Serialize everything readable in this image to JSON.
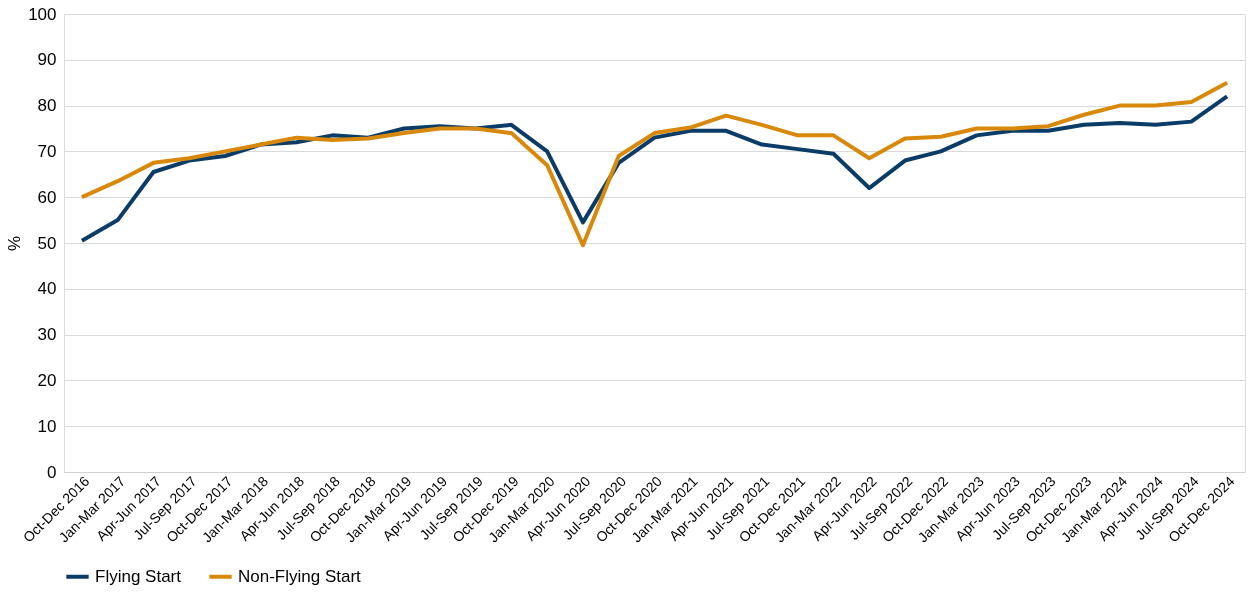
{
  "chart_data": {
    "type": "line",
    "ylabel": "%",
    "categories": [
      "Oct-Dec 2016",
      "Jan-Mar 2017",
      "Apr-Jun 2017",
      "Jul-Sep 2017",
      "Oct-Dec 2017",
      "Jan-Mar 2018",
      "Apr-Jun 2018",
      "Jul-Sep 2018",
      "Oct-Dec 2018",
      "Jan-Mar 2019",
      "Apr-Jun 2019",
      "Jul-Sep 2019",
      "Oct-Dec 2019",
      "Jan-Mar 2020",
      "Apr-Jun 2020",
      "Jul-Sep 2020",
      "Oct-Dec 2020",
      "Jan-Mar 2021",
      "Apr-Jun 2021",
      "Jul-Sep 2021",
      "Oct-Dec 2021",
      "Jan-Mar 2022",
      "Apr-Jun 2022",
      "Jul-Sep 2022",
      "Oct-Dec 2022",
      "Jan-Mar 2023",
      "Apr-Jun 2023",
      "Jul-Sep 2023",
      "Oct-Dec 2023",
      "Jan-Mar 2024",
      "Apr-Jun 2024",
      "Jul-Sep 2024",
      "Oct-Dec 2024"
    ],
    "series": [
      {
        "name": "Flying Start",
        "color": "#0b3c68",
        "values": [
          50.5,
          55,
          65.5,
          68,
          69,
          71.5,
          72,
          73.5,
          73,
          75,
          75.5,
          75,
          75.8,
          70,
          54.5,
          67.5,
          73,
          74.5,
          74.5,
          71.5,
          70.5,
          69.5,
          62,
          68,
          70,
          73.5,
          74.5,
          74.5,
          75.8,
          76.2,
          75.8,
          76.5,
          82
        ]
      },
      {
        "name": "Non-Flying Start",
        "color": "#d8890b",
        "values": [
          60,
          63.5,
          67.5,
          68.5,
          70,
          71.5,
          73,
          72.5,
          72.8,
          74,
          75,
          75,
          74,
          67,
          49.5,
          69,
          74,
          75.2,
          77.8,
          75.8,
          73.5,
          73.5,
          68.5,
          72.8,
          73.2,
          75,
          75,
          75.5,
          78,
          80,
          80,
          80.8,
          85
        ]
      }
    ],
    "ylim": [
      0,
      100
    ],
    "yticks": [
      0,
      10,
      20,
      30,
      40,
      50,
      60,
      70,
      80,
      90,
      100
    ],
    "grid": "y",
    "legend": "bottom",
    "marker": "none",
    "line_style": "solid"
  }
}
